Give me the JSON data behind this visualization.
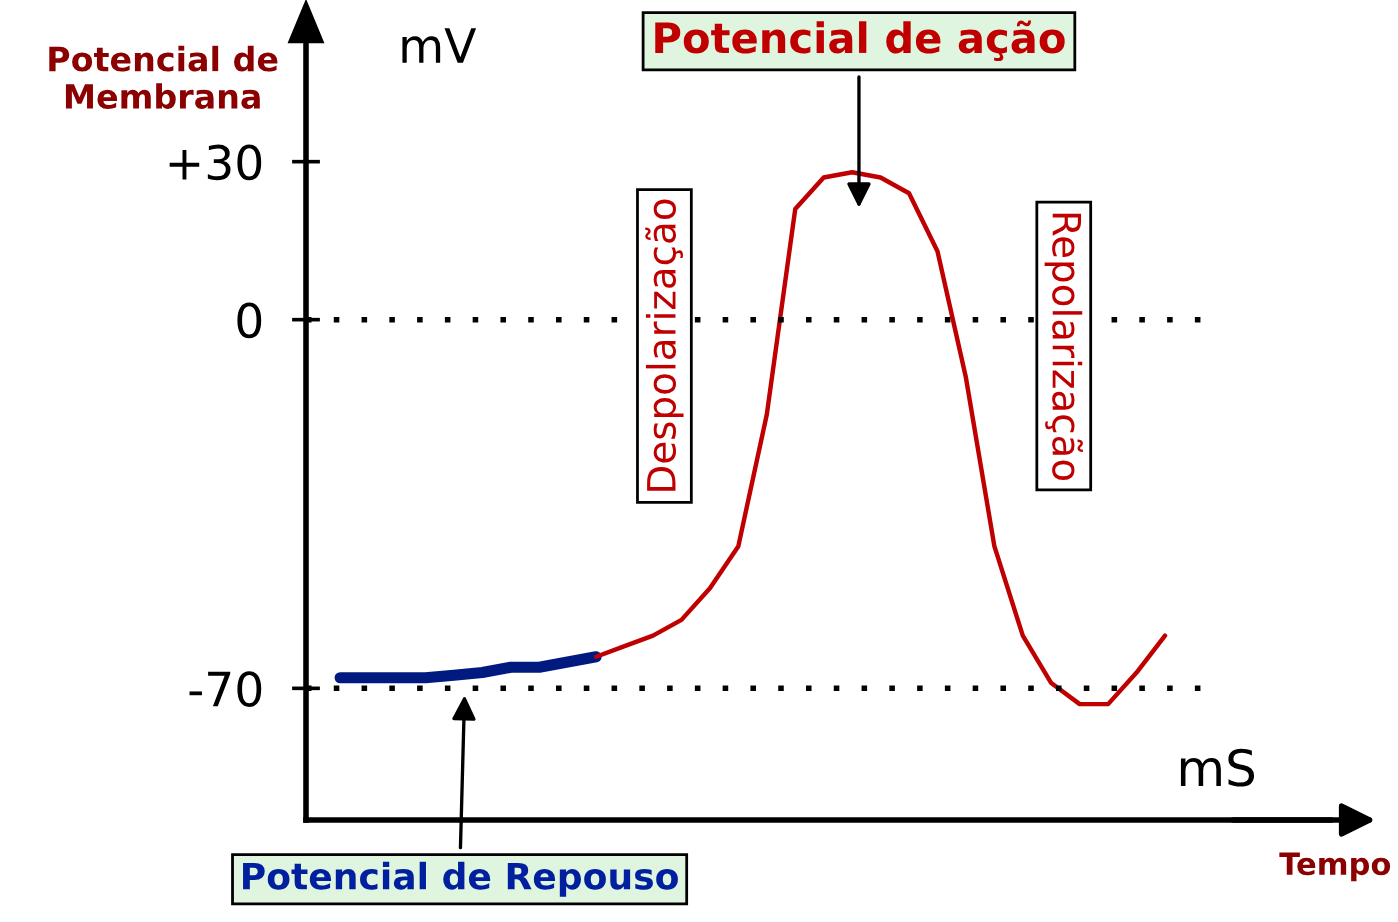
{
  "chart_data": {
    "type": "line",
    "ylabel": "Potencial de\nMembrana",
    "xlabel": "Tempo",
    "categories": [
      null,
      null,
      null,
      null,
      null,
      null,
      null,
      null,
      null,
      null,
      null,
      null,
      null,
      null,
      null,
      null,
      null,
      null,
      null,
      null,
      null,
      null,
      null,
      null,
      null,
      null,
      null,
      null,
      null,
      null
    ],
    "series": [
      {
        "color": "#001a80",
        "values": [
          -68,
          -68,
          -68,
          -68,
          -67.5,
          -67,
          -66,
          -66,
          -65,
          -64,
          null,
          null,
          null,
          null,
          null,
          null,
          null,
          null,
          null,
          null,
          null,
          null,
          null,
          null,
          null,
          null,
          null,
          null,
          null,
          null
        ]
      },
      {
        "color": "#c00000",
        "values": [
          null,
          null,
          null,
          null,
          null,
          null,
          null,
          null,
          null,
          -64,
          -62,
          -60,
          -57,
          -51,
          -43,
          -18,
          21,
          27,
          28,
          27,
          24,
          13,
          -11,
          -43,
          -60,
          -69,
          -73,
          -73,
          -67,
          -60
        ]
      }
    ],
    "ylim": [
      -95,
      55
    ],
    "yticks": [
      {
        "value": 30,
        "label": "+30"
      },
      {
        "value": 0,
        "label": "0"
      },
      {
        "value": -70,
        "label": "-70"
      }
    ],
    "tick_labels": "y",
    "ref_lines": [
      {
        "axis": "y",
        "value": 0,
        "line_style": "dotted",
        "color": "#000000"
      },
      {
        "axis": "y",
        "value": -70,
        "line_style": "dotted",
        "color": "#000000"
      }
    ],
    "annotations": [
      "mV",
      "mS",
      "Potencial de ação",
      "Despolarização",
      "Repolarização",
      "Potencial de Repouso"
    ],
    "grid": false,
    "legend": false,
    "marker": "none",
    "line_style": "solid"
  }
}
